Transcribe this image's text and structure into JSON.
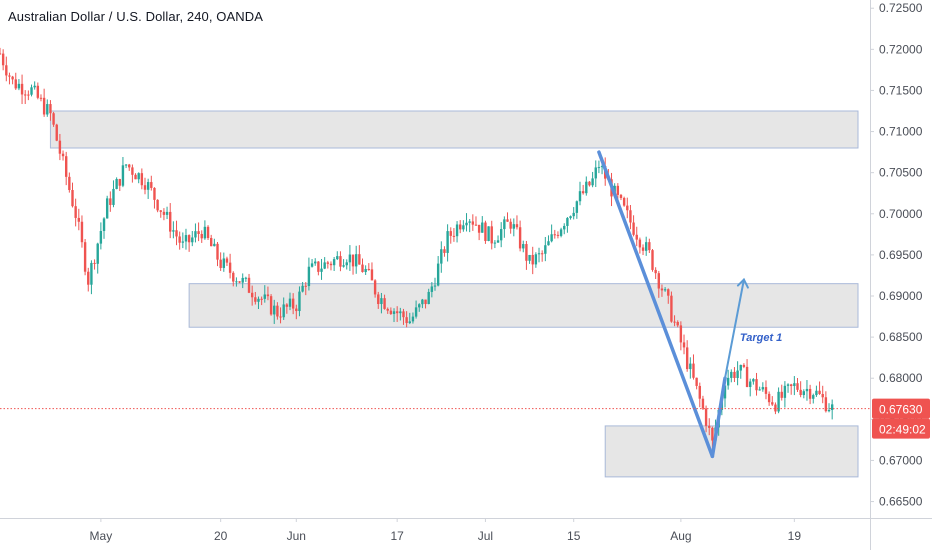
{
  "header": {
    "title": "Australian Dollar / U.S. Dollar, 240, OANDA"
  },
  "colors": {
    "up": "#26a69a",
    "down": "#ef5350",
    "zone_fill": "#e6e6e6",
    "zone_stroke": "#a9b9d9",
    "drawing_line": "#5b8fd9",
    "target_arrow": "#5b9bd5",
    "price_line": "#ef5350",
    "axis_line": "#d0d3da"
  },
  "chart_data": {
    "type": "candlestick",
    "symbol": "AUDUSD",
    "interval": "240",
    "source": "OANDA",
    "y_axis": {
      "range": [
        0.663,
        0.726
      ],
      "tick_labels": [
        "0.72500",
        "0.72000",
        "0.71500",
        "0.71000",
        "0.70500",
        "0.70000",
        "0.69500",
        "0.69000",
        "0.68500",
        "0.68000",
        "0.67500",
        "0.67000",
        "0.66500"
      ],
      "tick_values": [
        0.725,
        0.72,
        0.715,
        0.71,
        0.705,
        0.7,
        0.695,
        0.69,
        0.685,
        0.68,
        0.675,
        0.67,
        0.665
      ]
    },
    "x_axis": {
      "tick_labels": [
        "May",
        "20",
        "Jun",
        "17",
        "Jul",
        "15",
        "Aug",
        "19"
      ],
      "tick_dates": [
        "2019-05-01",
        "2019-05-20",
        "2019-06-01",
        "2019-06-17",
        "2019-07-01",
        "2019-07-15",
        "2019-08-01",
        "2019-08-19"
      ],
      "range": [
        "2019-04-15",
        "2019-08-31"
      ]
    },
    "close_path": [
      [
        "2019-04-15",
        0.7195
      ],
      [
        "2019-04-17",
        0.716
      ],
      [
        "2019-04-20",
        0.715
      ],
      [
        "2019-04-23",
        0.712
      ],
      [
        "2019-04-25",
        0.706
      ],
      [
        "2019-04-27",
        0.7
      ],
      [
        "2019-04-29",
        0.692
      ],
      [
        "2019-05-02",
        0.701
      ],
      [
        "2019-05-05",
        0.706
      ],
      [
        "2019-05-08",
        0.704
      ],
      [
        "2019-05-11",
        0.7
      ],
      [
        "2019-05-14",
        0.696
      ],
      [
        "2019-05-17",
        0.698
      ],
      [
        "2019-05-20",
        0.694
      ],
      [
        "2019-05-23",
        0.692
      ],
      [
        "2019-05-26",
        0.69
      ],
      [
        "2019-05-29",
        0.688
      ],
      [
        "2019-06-01",
        0.689
      ],
      [
        "2019-06-03",
        0.693
      ],
      [
        "2019-06-06",
        0.694
      ],
      [
        "2019-06-09",
        0.695
      ],
      [
        "2019-06-12",
        0.693
      ],
      [
        "2019-06-14",
        0.69
      ],
      [
        "2019-06-17",
        0.688
      ],
      [
        "2019-06-19",
        0.687
      ],
      [
        "2019-06-22",
        0.69
      ],
      [
        "2019-06-25",
        0.697
      ],
      [
        "2019-06-28",
        0.7
      ],
      [
        "2019-07-02",
        0.697
      ],
      [
        "2019-07-05",
        0.699
      ],
      [
        "2019-07-08",
        0.694
      ],
      [
        "2019-07-10",
        0.695
      ],
      [
        "2019-07-12",
        0.6975
      ],
      [
        "2019-07-15",
        0.701
      ],
      [
        "2019-07-18",
        0.704
      ],
      [
        "2019-07-19",
        0.706
      ],
      [
        "2019-07-21",
        0.703
      ],
      [
        "2019-07-24",
        0.699
      ],
      [
        "2019-07-27",
        0.695
      ],
      [
        "2019-07-30",
        0.689
      ],
      [
        "2019-08-02",
        0.682
      ],
      [
        "2019-08-05",
        0.675
      ],
      [
        "2019-08-06",
        0.672
      ],
      [
        "2019-08-08",
        0.68
      ],
      [
        "2019-08-10",
        0.681
      ],
      [
        "2019-08-13",
        0.679
      ],
      [
        "2019-08-16",
        0.677
      ],
      [
        "2019-08-19",
        0.679
      ],
      [
        "2019-08-22",
        0.6785
      ],
      [
        "2019-08-25",
        0.6763
      ]
    ],
    "zones": [
      {
        "name": "resistance-zone",
        "price_top": 0.7125,
        "price_bottom": 0.708,
        "start": "2019-04-23",
        "end": "2019-08-31"
      },
      {
        "name": "support-zone-middle",
        "price_top": 0.6915,
        "price_bottom": 0.6862,
        "start": "2019-05-15",
        "end": "2019-08-31"
      },
      {
        "name": "support-zone-lower",
        "price_top": 0.6742,
        "price_bottom": 0.668,
        "start": "2019-07-20",
        "end": "2019-08-31"
      }
    ],
    "drawings": [
      {
        "name": "decline-line",
        "points": [
          [
            "2019-07-19",
            0.7075
          ],
          [
            "2019-08-06",
            0.6705
          ]
        ]
      },
      {
        "name": "recovery-line",
        "points": [
          [
            "2019-08-06",
            0.6705
          ],
          [
            "2019-08-08",
            0.68
          ]
        ]
      },
      {
        "name": "target-arrow",
        "points": [
          [
            "2019-08-08",
            0.68
          ],
          [
            "2019-08-11",
            0.692
          ]
        ]
      }
    ],
    "annotations": [
      {
        "text": "Target 1",
        "date": "2019-08-11",
        "price": 0.685
      }
    ],
    "last_price": 0.6763,
    "last_price_label": "0.67630",
    "countdown_label": "02:49:02"
  }
}
